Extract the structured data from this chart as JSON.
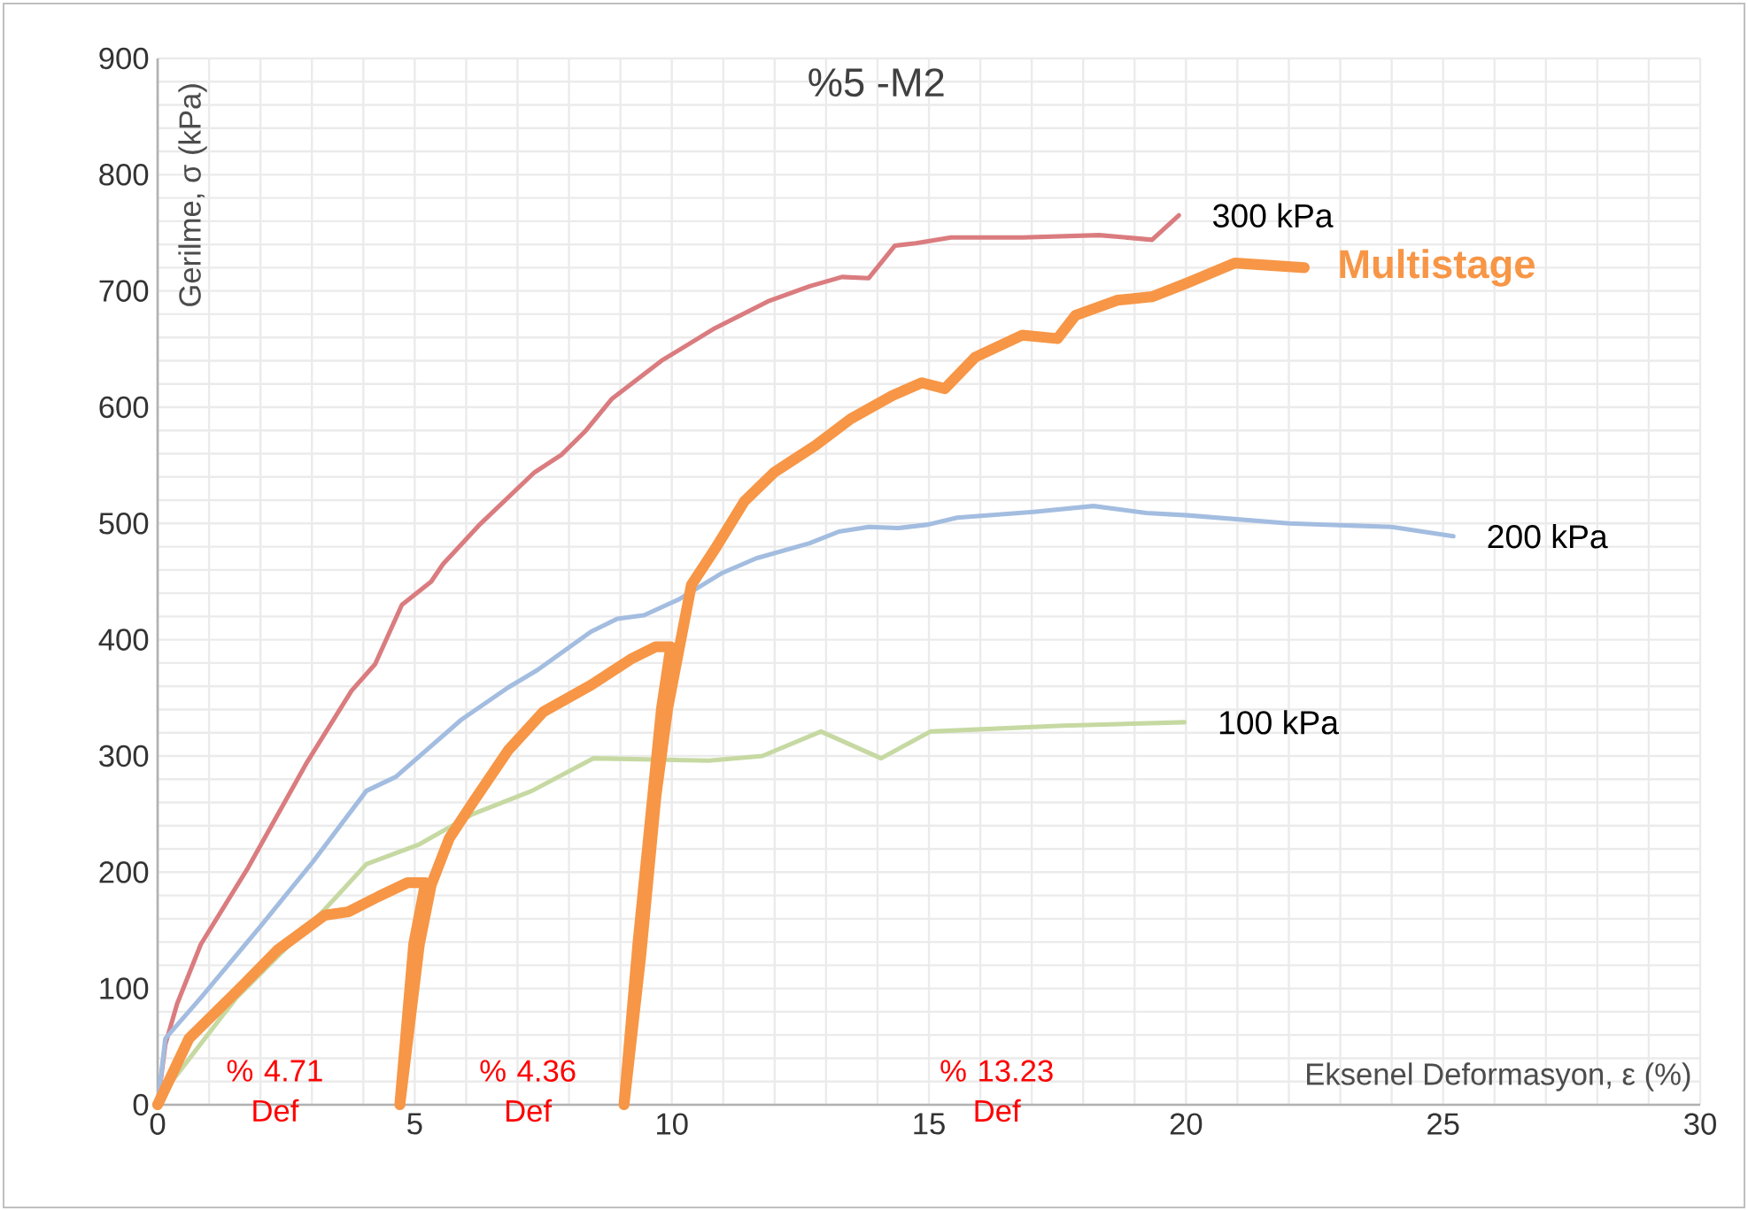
{
  "chart_data": {
    "type": "line",
    "title": "%5 -M2",
    "xlabel": "Eksenel Deformasyon, ε (%)",
    "ylabel": "Gerilme, σ (kPa)",
    "xlim": [
      0,
      30
    ],
    "ylim": [
      0,
      900
    ],
    "xticks": [
      0,
      5,
      10,
      15,
      20,
      25,
      30
    ],
    "yticks": [
      0,
      100,
      200,
      300,
      400,
      500,
      600,
      700,
      800,
      900
    ],
    "grid": true,
    "legend": false,
    "marker": "none",
    "line_style": "solid",
    "series": [
      {
        "name": "300 kPa",
        "color": "#da7c7f",
        "x": [
          0,
          0.15,
          0.38,
          0.84,
          1.76,
          2.91,
          3.77,
          4.23,
          4.75,
          5.32,
          5.55,
          6.24,
          7.33,
          7.85,
          8.31,
          8.83,
          9.8,
          10.84,
          11.87,
          12.68,
          13.31,
          13.83,
          14.34,
          14.75,
          15.43,
          16.82,
          18.31,
          19.34,
          19.86
        ],
        "values": [
          0,
          52,
          87,
          138,
          204,
          295,
          356,
          379,
          430,
          450,
          465,
          498,
          544,
          559,
          579,
          607,
          640,
          668,
          691,
          704,
          712,
          711,
          739,
          741,
          746,
          746,
          748,
          744,
          765
        ]
      },
      {
        "name": "200 kPa",
        "color": "#a3bde0",
        "x": [
          0,
          0.15,
          0.84,
          1.99,
          3.02,
          4.06,
          4.63,
          5.9,
          6.82,
          7.39,
          8.43,
          8.94,
          9.46,
          10.15,
          10.96,
          11.64,
          12.68,
          13.25,
          13.83,
          14.4,
          14.98,
          15.55,
          17.04,
          18.2,
          19.23,
          20.03,
          22,
          24,
          25.2
        ],
        "values": [
          0,
          57,
          92,
          153,
          209,
          270,
          282,
          331,
          359,
          374,
          407,
          418,
          421,
          435,
          457,
          470,
          483,
          493,
          497,
          496,
          499,
          505,
          510,
          515,
          509,
          507,
          500,
          497,
          489
        ]
      },
      {
        "name": "100 kPa",
        "color": "#c6d9a2",
        "x": [
          0,
          0.03,
          1.53,
          3.25,
          4.06,
          5.09,
          6.13,
          7.28,
          8.48,
          10.72,
          11.76,
          12.9,
          14.07,
          15.03,
          17.6,
          19.97
        ],
        "values": [
          0,
          6,
          92,
          168,
          207,
          224,
          250,
          270,
          298,
          296,
          300,
          321,
          298,
          321,
          326,
          329
        ]
      },
      {
        "name": "Multistage",
        "color": "#f79646",
        "x": [
          0,
          0.61,
          1.64,
          2.33,
          3.25,
          3.71,
          4.29,
          4.86,
          5.21,
          4.98,
          4.71,
          5.09,
          5.32,
          5.67,
          6.13,
          6.82,
          7.5,
          8.43,
          9.23,
          9.69,
          9.98,
          9.8,
          9.34,
          9.07,
          9.4,
          9.69,
          9.92,
          10.38,
          10.84,
          11.41,
          11.99,
          12.79,
          13.48,
          14.29,
          14.86,
          15.31,
          15.9,
          16.82,
          17.5,
          17.85,
          18.66,
          19.34,
          20.03,
          20.95,
          22.3
        ],
        "values": [
          0,
          57,
          102,
          133,
          163,
          166,
          179,
          191,
          191,
          138,
          0,
          138,
          189,
          229,
          260,
          305,
          338,
          361,
          384,
          394,
          394,
          341,
          138,
          0,
          130,
          265,
          341,
          447,
          478,
          519,
          544,
          567,
          590,
          610,
          621,
          616,
          643,
          662,
          659,
          679,
          692,
          695,
          707,
          724,
          720
        ]
      }
    ],
    "annotations": [
      "% 4.71 Def",
      "% 4.36 Def",
      "% 13.23 Def"
    ]
  }
}
